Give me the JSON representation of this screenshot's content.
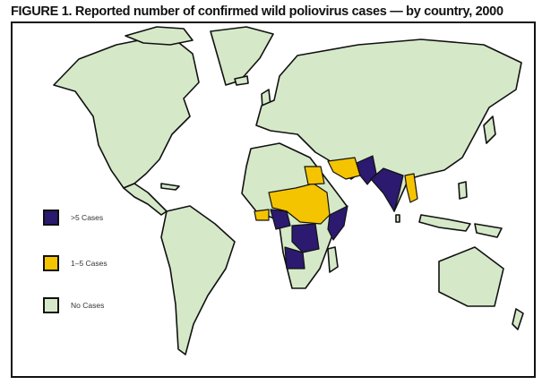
{
  "title": "FIGURE 1. Reported number of confirmed wild poliovirus cases — by country, 2000",
  "legend": [
    {
      "label": ">5 Cases",
      "color": "#2b1a6f"
    },
    {
      "label": "1–5 Cases",
      "color": "#f5c400"
    },
    {
      "label": "No Cases",
      "color": "#d5e9c9"
    }
  ],
  "categories": {
    ">5 Cases": [
      "Nigeria",
      "Democratic Republic of the Congo",
      "Angola",
      "Ethiopia",
      "Somalia",
      "Afghanistan",
      "Pakistan",
      "India"
    ],
    "1–5 Cases": [
      "Niger",
      "Chad",
      "Sudan",
      "Egypt",
      "Iran",
      "Bangladesh",
      "Ghana",
      "Benin",
      "Togo"
    ]
  }
}
